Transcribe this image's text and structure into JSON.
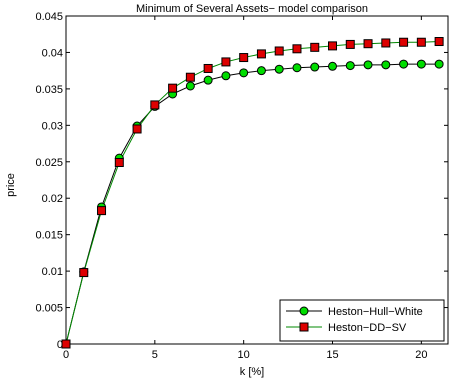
{
  "chart_data": {
    "type": "line",
    "title": "Minimum of Several Assets− model comparison",
    "xlabel": "k [%]",
    "ylabel": "price",
    "xlim": [
      0,
      21.5
    ],
    "ylim": [
      0,
      0.045
    ],
    "xticks": [
      0,
      5,
      10,
      15,
      20
    ],
    "yticks": [
      0,
      0.005,
      0.01,
      0.015,
      0.02,
      0.025,
      0.03,
      0.035,
      0.04,
      0.045
    ],
    "ytick_labels": [
      "0",
      "0.005",
      "0.01",
      "0.015",
      "0.02",
      "0.025",
      "0.03",
      "0.035",
      "0.04",
      "0.045"
    ],
    "xtick_labels": [
      "0",
      "5",
      "10",
      "15",
      "20"
    ],
    "grid": false,
    "legend_position": "bottom-right",
    "x": [
      0,
      1,
      2,
      3,
      4,
      5,
      6,
      7,
      8,
      9,
      10,
      11,
      12,
      13,
      14,
      15,
      16,
      17,
      18,
      19,
      20,
      21
    ],
    "series": [
      {
        "name": "Heston−Hull−White",
        "marker": "circle",
        "color": "#00dd00",
        "line_color": "#000000",
        "values": [
          0,
          0.0099,
          0.0188,
          0.0255,
          0.0299,
          0.0326,
          0.0343,
          0.0354,
          0.0362,
          0.0368,
          0.0372,
          0.0375,
          0.0377,
          0.0379,
          0.038,
          0.0381,
          0.0382,
          0.0383,
          0.0383,
          0.0384,
          0.0384,
          0.0384
        ]
      },
      {
        "name": "Heston−DD−SV",
        "marker": "square",
        "color": "#dd0000",
        "line_color": "#008800",
        "values": [
          0,
          0.0098,
          0.0183,
          0.0249,
          0.0295,
          0.0328,
          0.0351,
          0.0366,
          0.0378,
          0.0387,
          0.0393,
          0.0398,
          0.0402,
          0.0405,
          0.0407,
          0.0409,
          0.0411,
          0.0412,
          0.0413,
          0.0414,
          0.0414,
          0.0415
        ]
      }
    ]
  }
}
